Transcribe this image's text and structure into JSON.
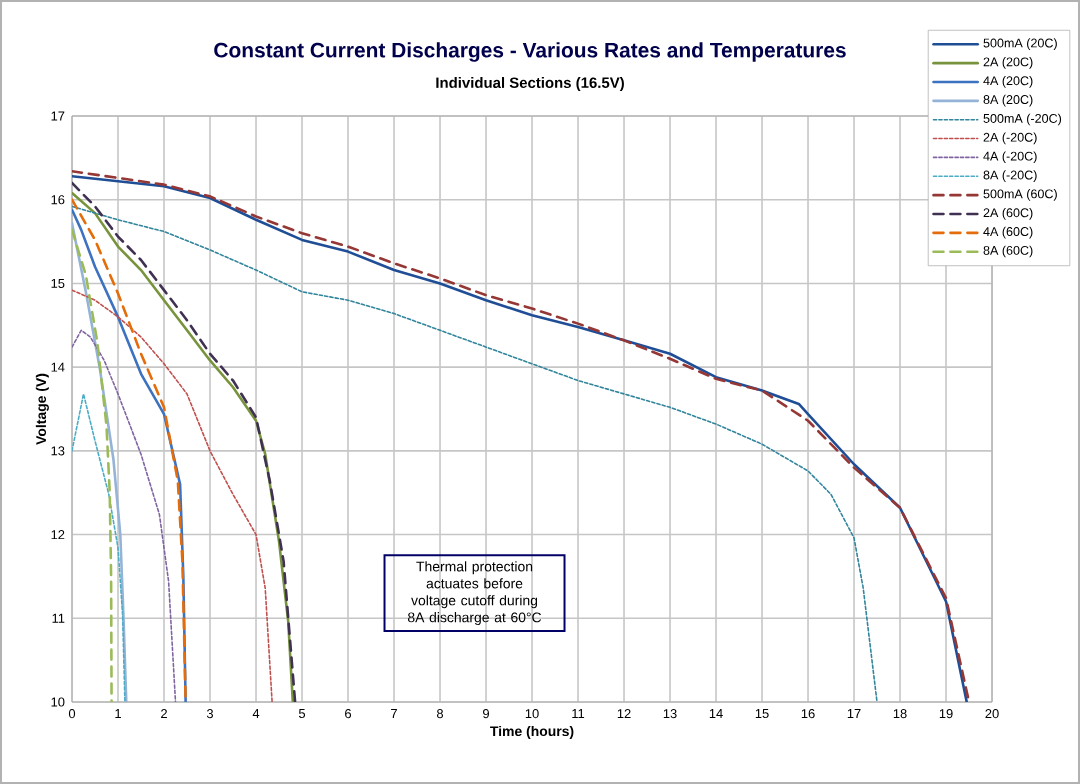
{
  "chart_data": {
    "type": "line",
    "title": "Constant Current Discharges - Various Rates and Temperatures",
    "subtitle": "Individual Sections (16.5V)",
    "xlabel": "Time (hours)",
    "ylabel": "Voltage (V)",
    "xlim": [
      0,
      20
    ],
    "ylim": [
      10,
      17
    ],
    "xticks": [
      0,
      1,
      2,
      3,
      4,
      5,
      6,
      7,
      8,
      9,
      10,
      11,
      12,
      13,
      14,
      15,
      16,
      17,
      18,
      19,
      20
    ],
    "yticks": [
      10,
      11,
      12,
      13,
      14,
      15,
      16,
      17
    ],
    "grid": true,
    "legend": "top right",
    "annotations": [
      "Thermal protection actuates before voltage cutoff during 8A discharge at 60°C"
    ],
    "series": [
      {
        "name": "500mA (20C)",
        "color": "#1f4e96",
        "line_style": "solid",
        "x": [
          0,
          1,
          2,
          3,
          4,
          5,
          6,
          7,
          8,
          9,
          10,
          11,
          12,
          13,
          14,
          15,
          15.8,
          16,
          17,
          18,
          19,
          19.45
        ],
        "values": [
          16.28,
          16.22,
          16.16,
          16.02,
          15.76,
          15.52,
          15.38,
          15.16,
          15.0,
          14.8,
          14.62,
          14.48,
          14.32,
          14.16,
          13.88,
          13.72,
          13.56,
          13.44,
          12.84,
          12.32,
          11.2,
          10.0
        ]
      },
      {
        "name": "2A (20C)",
        "color": "#77933c",
        "line_style": "solid",
        "x": [
          0,
          0.5,
          1,
          1.5,
          2,
          2.5,
          3,
          3.5,
          4,
          4.2,
          4.5,
          4.7,
          4.8
        ],
        "values": [
          16.08,
          15.84,
          15.44,
          15.16,
          14.8,
          14.44,
          14.08,
          13.76,
          13.36,
          12.96,
          11.92,
          10.96,
          10.0
        ]
      },
      {
        "name": "4A (20C)",
        "color": "#3c72c0",
        "line_style": "solid",
        "x": [
          0,
          0.2,
          0.5,
          1,
          1.5,
          2,
          2.35,
          2.42,
          2.47
        ],
        "values": [
          15.88,
          15.64,
          15.2,
          14.6,
          13.92,
          13.44,
          12.6,
          11.5,
          10.0
        ]
      },
      {
        "name": "8A (20C)",
        "color": "#95b3d7",
        "line_style": "solid",
        "x": [
          0,
          0.3,
          0.6,
          0.9,
          1.05,
          1.12,
          1.18
        ],
        "values": [
          15.72,
          14.9,
          14.0,
          12.9,
          12.0,
          11.0,
          10.0
        ]
      },
      {
        "name": "500mA (-20C)",
        "color": "#31859c",
        "line_style": "dotted",
        "x": [
          0,
          1,
          2,
          3,
          4,
          5,
          6,
          7,
          8,
          9,
          10,
          11,
          12,
          13,
          14,
          15,
          16,
          16.5,
          17,
          17.2,
          17.5
        ],
        "values": [
          15.92,
          15.76,
          15.62,
          15.4,
          15.16,
          14.9,
          14.8,
          14.64,
          14.44,
          14.24,
          14.04,
          13.84,
          13.68,
          13.52,
          13.32,
          13.08,
          12.76,
          12.48,
          11.96,
          11.36,
          10.0
        ]
      },
      {
        "name": "2A (-20C)",
        "color": "#c0504d",
        "line_style": "dotted",
        "x": [
          0,
          0.5,
          1,
          1.5,
          2,
          2.5,
          3,
          3.5,
          4,
          4.2,
          4.35
        ],
        "values": [
          14.92,
          14.8,
          14.6,
          14.36,
          14.04,
          13.68,
          13.0,
          12.48,
          12.0,
          11.36,
          10.0
        ]
      },
      {
        "name": "4A (-20C)",
        "color": "#8064a2",
        "line_style": "dotted",
        "x": [
          0,
          0.2,
          0.4,
          0.7,
          1,
          1.5,
          1.9,
          2.1,
          2.25
        ],
        "values": [
          14.24,
          14.44,
          14.36,
          14.08,
          13.68,
          12.96,
          12.24,
          11.44,
          10.0
        ]
      },
      {
        "name": "8A (-20C)",
        "color": "#4bacc6",
        "line_style": "dotted",
        "x": [
          0,
          0.25,
          0.5,
          0.8,
          1.0,
          1.1,
          1.15
        ],
        "values": [
          13.0,
          13.68,
          13.12,
          12.48,
          11.84,
          11.04,
          10.0
        ]
      },
      {
        "name": "500mA (60C)",
        "color": "#953735",
        "line_style": "dashed",
        "x": [
          0,
          1,
          2,
          3,
          4,
          5,
          6,
          7,
          8,
          9,
          10,
          11,
          12,
          13,
          14,
          15,
          16,
          17,
          18,
          19,
          19.5
        ],
        "values": [
          16.34,
          16.26,
          16.18,
          16.04,
          15.8,
          15.6,
          15.44,
          15.24,
          15.06,
          14.86,
          14.7,
          14.52,
          14.32,
          14.1,
          13.86,
          13.72,
          13.36,
          12.8,
          12.32,
          11.24,
          10.0
        ]
      },
      {
        "name": "2A (60C)",
        "color": "#403152",
        "line_style": "dashed",
        "x": [
          0,
          0.5,
          1,
          1.5,
          2,
          2.5,
          3,
          3.5,
          4,
          4.3,
          4.6,
          4.85
        ],
        "values": [
          16.2,
          15.92,
          15.56,
          15.28,
          14.92,
          14.56,
          14.16,
          13.84,
          13.4,
          12.64,
          11.68,
          10.0
        ]
      },
      {
        "name": "4A (60C)",
        "color": "#e46c0a",
        "line_style": "dashed",
        "x": [
          0,
          0.5,
          1,
          1.5,
          2,
          2.3,
          2.4,
          2.47
        ],
        "values": [
          16.0,
          15.52,
          14.88,
          14.16,
          13.52,
          12.64,
          11.68,
          10.0
        ]
      },
      {
        "name": "8A (60C)",
        "color": "#9bbb59",
        "line_style": "dashed",
        "x": [
          0,
          0.3,
          0.55,
          0.75,
          0.82,
          0.85,
          0.86
        ],
        "values": [
          15.64,
          15.1,
          14.3,
          13.3,
          12.5,
          11.5,
          10.0
        ]
      }
    ]
  }
}
